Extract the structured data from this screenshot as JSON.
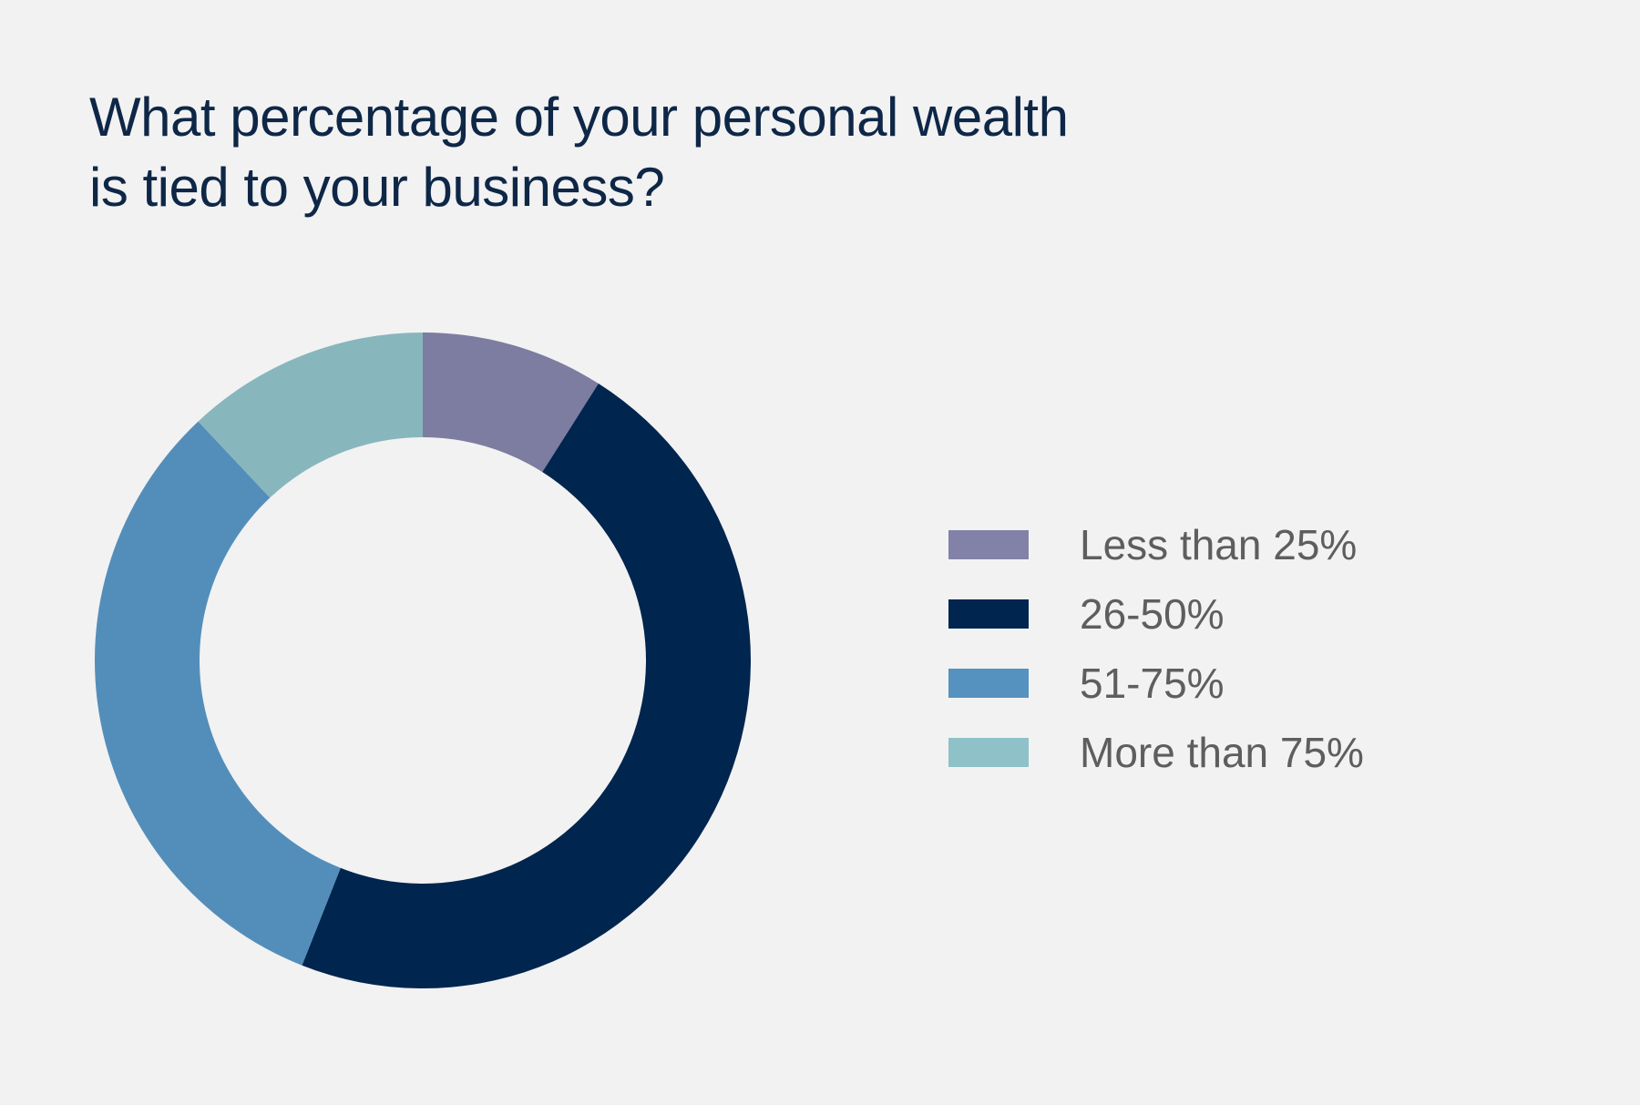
{
  "chart_data": {
    "type": "pie",
    "variant": "donut",
    "title_lines": [
      "What percentage of your personal wealth",
      "is tied to your business?"
    ],
    "categories": [
      "Less than 25%",
      "26-50%",
      "51-75%",
      "More than 75%"
    ],
    "values": [
      9,
      47,
      32,
      12
    ],
    "unit": "percent",
    "colors": [
      "#7d7ca1",
      "#00254f",
      "#538ebb",
      "#88b6bd"
    ],
    "legend_colors": [
      "#8282a8",
      "#00254f",
      "#5592c0",
      "#8ec1c8"
    ],
    "start_angle": "top, clockwise",
    "legend_placement": "right"
  }
}
